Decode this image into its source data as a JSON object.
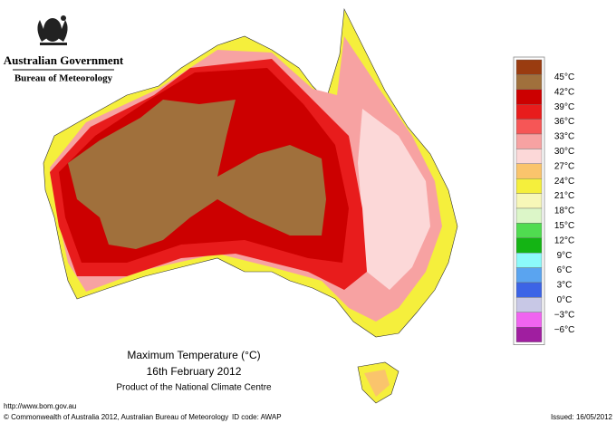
{
  "header": {
    "government": "Australian Government",
    "bureau": "Bureau of Meteorology"
  },
  "map": {
    "title": "Maximum Temperature (°C)",
    "date": "16th February 2012",
    "product": "Product of the National Climate Centre"
  },
  "legend": {
    "labels": [
      "45°C",
      "42°C",
      "39°C",
      "36°C",
      "33°C",
      "30°C",
      "27°C",
      "24°C",
      "21°C",
      "18°C",
      "15°C",
      "12°C",
      "9°C",
      "6°C",
      "3°C",
      "0°C",
      "−3°C",
      "−6°C"
    ],
    "colors": [
      "#9a3c10",
      "#a0703c",
      "#cc0000",
      "#e81c1c",
      "#f65656",
      "#f7a2a2",
      "#fcd8d8",
      "#fac46c",
      "#f5ef3c",
      "#f7f7b8",
      "#dcf6c8",
      "#50dc50",
      "#14b414",
      "#8cfafa",
      "#5aa4f0",
      "#3c64e6",
      "#c8c8e6",
      "#f064f0",
      "#a01ea0"
    ]
  },
  "footer": {
    "url": "http://www.bom.gov.au",
    "copyright": "© Commonwealth of Australia 2012, Australian Bureau of Meteorology",
    "id_code": "ID code: AWAP",
    "issued": "Issued: 16/05/2012"
  }
}
